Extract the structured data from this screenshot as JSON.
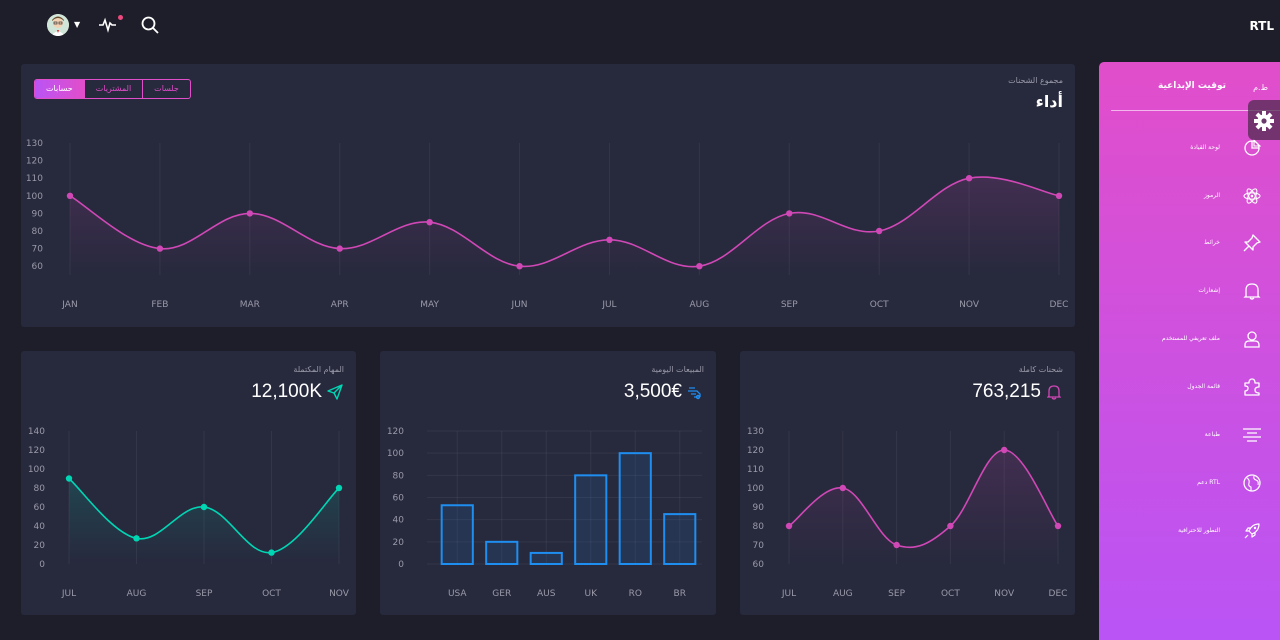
{
  "header": {
    "rtl_label": "RTL",
    "icons": [
      "avatar",
      "caret-down-icon",
      "activity-icon",
      "search-icon"
    ]
  },
  "performance": {
    "subtitle": "مجموع الشحنات",
    "title": "أداء",
    "tabs": [
      "حسابات",
      "المشتريات",
      "جلسات"
    ],
    "active_tab": "حسابات"
  },
  "completed_tasks": {
    "subtitle": "المهام المكتملة",
    "value": "12,100K",
    "icon": "send-icon"
  },
  "daily_sales": {
    "subtitle": "المبيعات اليومية",
    "value": "3,500€",
    "icon": "delivery-fast-icon"
  },
  "total_shipments": {
    "subtitle": "شحنات كاملة",
    "value": "763,215",
    "icon": "bell-icon"
  },
  "sidebar": {
    "logo_mini": "ط.م",
    "logo_text": "توقيت الإبداعية",
    "items": [
      {
        "label": "لوحة القيادة",
        "icon": "chart-pie-icon"
      },
      {
        "label": "الرموز",
        "icon": "atom-icon"
      },
      {
        "label": "خرائط",
        "icon": "pin-icon"
      },
      {
        "label": "إشعارات",
        "icon": "bell-icon"
      },
      {
        "label": "ملف تعريفي للمستخدم",
        "icon": "user-icon"
      },
      {
        "label": "قائمة الجدول",
        "icon": "puzzle-icon"
      },
      {
        "label": "طباعة",
        "icon": "align-center-icon"
      },
      {
        "label": "دعم RTL",
        "icon": "world-icon"
      },
      {
        "label": "التطور للاحترافية",
        "icon": "rocket-icon"
      }
    ]
  },
  "chart_data": [
    {
      "type": "line",
      "title": "أداء",
      "categories": [
        "JAN",
        "FEB",
        "MAR",
        "APR",
        "MAY",
        "JUN",
        "JUL",
        "AUG",
        "SEP",
        "OCT",
        "NOV",
        "DEC"
      ],
      "values": [
        100,
        70,
        90,
        70,
        85,
        60,
        75,
        60,
        90,
        80,
        110,
        100
      ],
      "yticks": [
        60,
        70,
        80,
        90,
        100,
        110,
        120,
        130
      ],
      "ylim": [
        55,
        130
      ],
      "color": "#d048b6"
    },
    {
      "type": "line",
      "title": "المهام المكتملة",
      "categories": [
        "JUL",
        "AUG",
        "SEP",
        "OCT",
        "NOV"
      ],
      "values": [
        90,
        27,
        60,
        12,
        80
      ],
      "yticks": [
        0,
        20,
        40,
        60,
        80,
        100,
        120,
        140
      ],
      "ylim": [
        0,
        140
      ],
      "color": "#00d6b4"
    },
    {
      "type": "bar",
      "title": "المبيعات اليومية",
      "categories": [
        "USA",
        "GER",
        "AUS",
        "UK",
        "RO",
        "BR"
      ],
      "values": [
        53,
        20,
        10,
        80,
        100,
        45
      ],
      "yticks": [
        0,
        20,
        40,
        60,
        80,
        100,
        120
      ],
      "ylim": [
        0,
        120
      ],
      "color": "#1f8ef1"
    },
    {
      "type": "line",
      "title": "شحنات كاملة",
      "categories": [
        "JUL",
        "AUG",
        "SEP",
        "OCT",
        "NOV",
        "DEC"
      ],
      "values": [
        80,
        100,
        70,
        80,
        120,
        80
      ],
      "yticks": [
        60,
        70,
        80,
        90,
        100,
        110,
        120,
        130
      ],
      "ylim": [
        60,
        130
      ],
      "color": "#d048b6"
    }
  ]
}
